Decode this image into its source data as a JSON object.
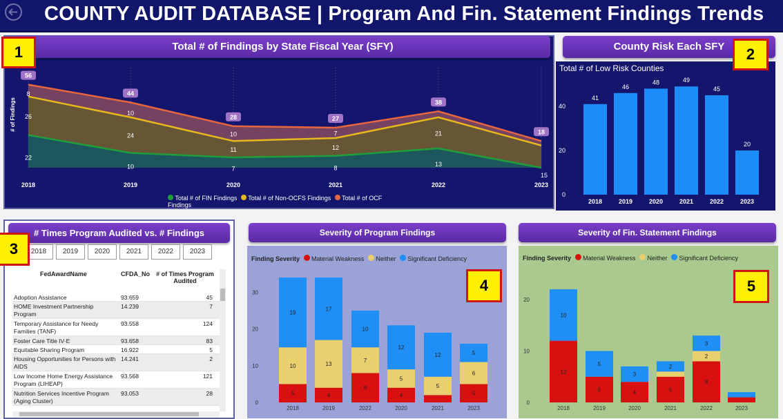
{
  "header": {
    "title": "COUNTY AUDIT DATABASE  |  Program And Fin. Statement Findings Trends"
  },
  "badges": [
    "1",
    "2",
    "3",
    "4",
    "5"
  ],
  "panel1": {
    "title": "Total # of Findings by State Fiscal Year (SFY)",
    "legend": [
      "Total # of FIN Findings",
      "Total # of Non-OCFS Findings",
      "Total # of OCF Findings"
    ],
    "colors": {
      "fin": "#1f9e3c",
      "nonocfs": "#e7b91c",
      "ocf": "#e8653d"
    }
  },
  "panel2": {
    "title": "County Risk Each SFY",
    "subtitle": "Total # of Low Risk Counties"
  },
  "panel3": {
    "title": "# Times Program Audited vs. # Findings",
    "year_chips": [
      "2018",
      "2019",
      "2020",
      "2021",
      "2022",
      "2023"
    ],
    "columns": [
      "FedAwardName",
      "CFDA_No",
      "# of Times Program Audited"
    ],
    "rows": [
      {
        "name": "Adoption Assistance",
        "cfda": "93.659",
        "times": "45"
      },
      {
        "name": "HOME Investment Partnership Program",
        "cfda": "14.239",
        "times": "7"
      },
      {
        "name": "Temporary Assistance for Needy Families (TANF)",
        "cfda": "93.558",
        "times": "124"
      },
      {
        "name": "Foster Care Title IV-E",
        "cfda": "93.658",
        "times": "83"
      },
      {
        "name": "Equitable Sharing Program",
        "cfda": "16.922",
        "times": "5"
      },
      {
        "name": "Housing Opportunities for Persons with AIDS",
        "cfda": "14.241",
        "times": "2"
      },
      {
        "name": "Low Income Home Energy Assistance Program (LIHEAP)",
        "cfda": "93.568",
        "times": "121"
      },
      {
        "name": "Nutrition Services Incentive Program (Aging Cluster)",
        "cfda": "93.053",
        "times": "28"
      }
    ]
  },
  "panel4": {
    "title": "Severity of Program Findings",
    "legend_title": "Finding Severity",
    "legend": [
      "Material Weakness",
      "Neither",
      "Significant Deficiency"
    ]
  },
  "panel5": {
    "title": "Severity of Fin. Statement Findings",
    "legend_title": "Finding Severity",
    "legend": [
      "Material Weakness",
      "Neither",
      "Significant Deficiency"
    ]
  },
  "chart_data": [
    {
      "type": "area",
      "title": "Total # of Findings by State Fiscal Year (SFY)",
      "ylabel": "# of Findings",
      "x": [
        "2018",
        "2019",
        "2020",
        "2021",
        "2022",
        "2023"
      ],
      "series": [
        {
          "name": "Total # of FIN Findings",
          "values": [
            22,
            10,
            7,
            8,
            13,
            0
          ]
        },
        {
          "name": "Total # of Non-OCFS Findings",
          "values": [
            26,
            24,
            11,
            12,
            21,
            15
          ]
        },
        {
          "name": "Total # of OCF Findings",
          "values": [
            8,
            10,
            10,
            7,
            4,
            3
          ]
        }
      ],
      "totals": [
        56,
        44,
        28,
        27,
        38,
        18
      ],
      "value_labels": [
        [
          "22",
          "26",
          "8"
        ],
        [
          "10",
          "24",
          "10"
        ],
        [
          "7",
          "11",
          "10"
        ],
        [
          "8",
          "12",
          "7"
        ],
        [
          "13",
          "21",
          ""
        ],
        [
          "",
          "15",
          ""
        ]
      ],
      "legend_position": "bottom"
    },
    {
      "type": "bar",
      "title": "Total # of Low Risk Counties",
      "categories": [
        "2018",
        "2019",
        "2020",
        "2021",
        "2022",
        "2023"
      ],
      "values": [
        41,
        46,
        48,
        49,
        45,
        20
      ],
      "yticks": [
        0,
        20,
        40
      ],
      "ylim": [
        0,
        55
      ],
      "color": "#1d8cf8"
    },
    {
      "type": "bar",
      "stacked": true,
      "title": "Severity of Program Findings",
      "categories": [
        "2018",
        "2019",
        "2022",
        "2020",
        "2021",
        "2023"
      ],
      "series": [
        {
          "name": "Material Weakness",
          "values": [
            5,
            4,
            8,
            4,
            2,
            5
          ]
        },
        {
          "name": "Neither",
          "values": [
            10,
            13,
            7,
            5,
            5,
            6
          ]
        },
        {
          "name": "Significant Deficiency",
          "values": [
            19,
            17,
            10,
            12,
            12,
            5
          ]
        }
      ],
      "labels": [
        [
          "5",
          "10",
          "19"
        ],
        [
          "4",
          "13",
          "17"
        ],
        [
          "8",
          "7",
          "10"
        ],
        [
          "4",
          "5",
          "12"
        ],
        [
          "",
          "5",
          "12"
        ],
        [
          "5",
          "6",
          "5"
        ]
      ],
      "yticks": [
        0,
        10,
        20,
        30
      ],
      "ylim": [
        0,
        35
      ],
      "colors": [
        "#d81010",
        "#e9cf6e",
        "#1f8ff5"
      ]
    },
    {
      "type": "bar",
      "stacked": true,
      "title": "Severity of Fin. Statement Findings",
      "categories": [
        "2018",
        "2019",
        "2020",
        "2021",
        "2022",
        "2023"
      ],
      "series": [
        {
          "name": "Material Weakness",
          "values": [
            12,
            5,
            4,
            5,
            8,
            1
          ]
        },
        {
          "name": "Neither",
          "values": [
            0,
            0,
            0,
            1,
            2,
            0
          ]
        },
        {
          "name": "Significant Deficiency",
          "values": [
            10,
            5,
            3,
            2,
            3,
            1
          ]
        }
      ],
      "labels": [
        [
          "12",
          "",
          "10"
        ],
        [
          "5",
          "",
          "5"
        ],
        [
          "4",
          "",
          "3"
        ],
        [
          "5",
          "",
          "2"
        ],
        [
          "8",
          "2",
          "3"
        ],
        [
          "",
          "",
          ""
        ]
      ],
      "yticks": [
        0,
        10,
        20
      ],
      "ylim": [
        0,
        24
      ],
      "colors": [
        "#d81010",
        "#e9cf6e",
        "#1f8ff5"
      ]
    }
  ]
}
